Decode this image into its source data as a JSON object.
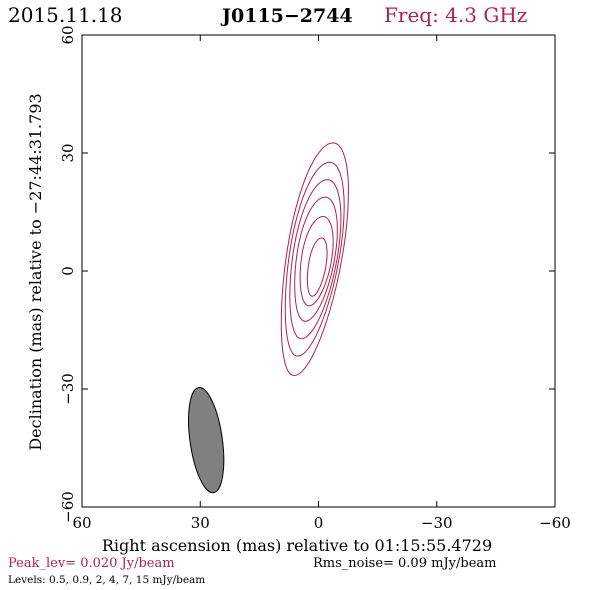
{
  "header": {
    "date": "2015.11.18",
    "source": "J0115−2744",
    "freq": "Freq: 4.3 GHz"
  },
  "footer": {
    "peak": "Peak_lev=  0.020 Jy/beam",
    "rms": "Rms_noise= 0.09 mJy/beam",
    "levels": "Levels: 0.5, 0.9,   2,   4,   7,  15 mJy/beam"
  },
  "colors": {
    "contour": "#b0214e",
    "beam_fill": "#808080",
    "axes": "#000000",
    "header_freq": "#b0214e",
    "peak_text": "#b0214e"
  },
  "chart_data": {
    "type": "contour",
    "xlabel": "Right ascension (mas) relative to 01:15:55.4729",
    "ylabel": "Declination (mas) relative to −27:44:31.793",
    "xlim": [
      60,
      -60
    ],
    "ylim": [
      -60,
      60
    ],
    "x_ticks": [
      60,
      30,
      0,
      -30,
      -60
    ],
    "x_tick_labels": [
      "60",
      "30",
      "0",
      "−30",
      "−60"
    ],
    "y_ticks": [
      -60,
      -30,
      0,
      30,
      60
    ],
    "y_tick_labels": [
      "−60",
      "−30",
      "0",
      "30",
      "60"
    ],
    "contour_levels_mJy": [
      0.5,
      0.9,
      2,
      4,
      7,
      15
    ],
    "contours": [
      {
        "level": 0.5,
        "center": [
          1.2,
          3
        ],
        "half_width": 7.0,
        "half_height": 30.0,
        "rotation_deg": 10
      },
      {
        "level": 0.9,
        "center": [
          1.2,
          3
        ],
        "half_width": 6.3,
        "half_height": 25.0,
        "rotation_deg": 10
      },
      {
        "level": 2,
        "center": [
          1.0,
          3
        ],
        "half_width": 5.6,
        "half_height": 20.5,
        "rotation_deg": 10
      },
      {
        "level": 4,
        "center": [
          0.8,
          3
        ],
        "half_width": 4.8,
        "half_height": 16.0,
        "rotation_deg": 10
      },
      {
        "level": 7,
        "center": [
          0.6,
          2.5
        ],
        "half_width": 3.8,
        "half_height": 11.5,
        "rotation_deg": 10
      },
      {
        "level": 15,
        "center": [
          0.4,
          1
        ],
        "half_width": 2.2,
        "half_height": 7.5,
        "rotation_deg": 10
      }
    ],
    "beam": {
      "center": [
        28.5,
        -43
      ],
      "major_mas": 27,
      "minor_mas": 8.2,
      "pa_deg": 8
    }
  }
}
